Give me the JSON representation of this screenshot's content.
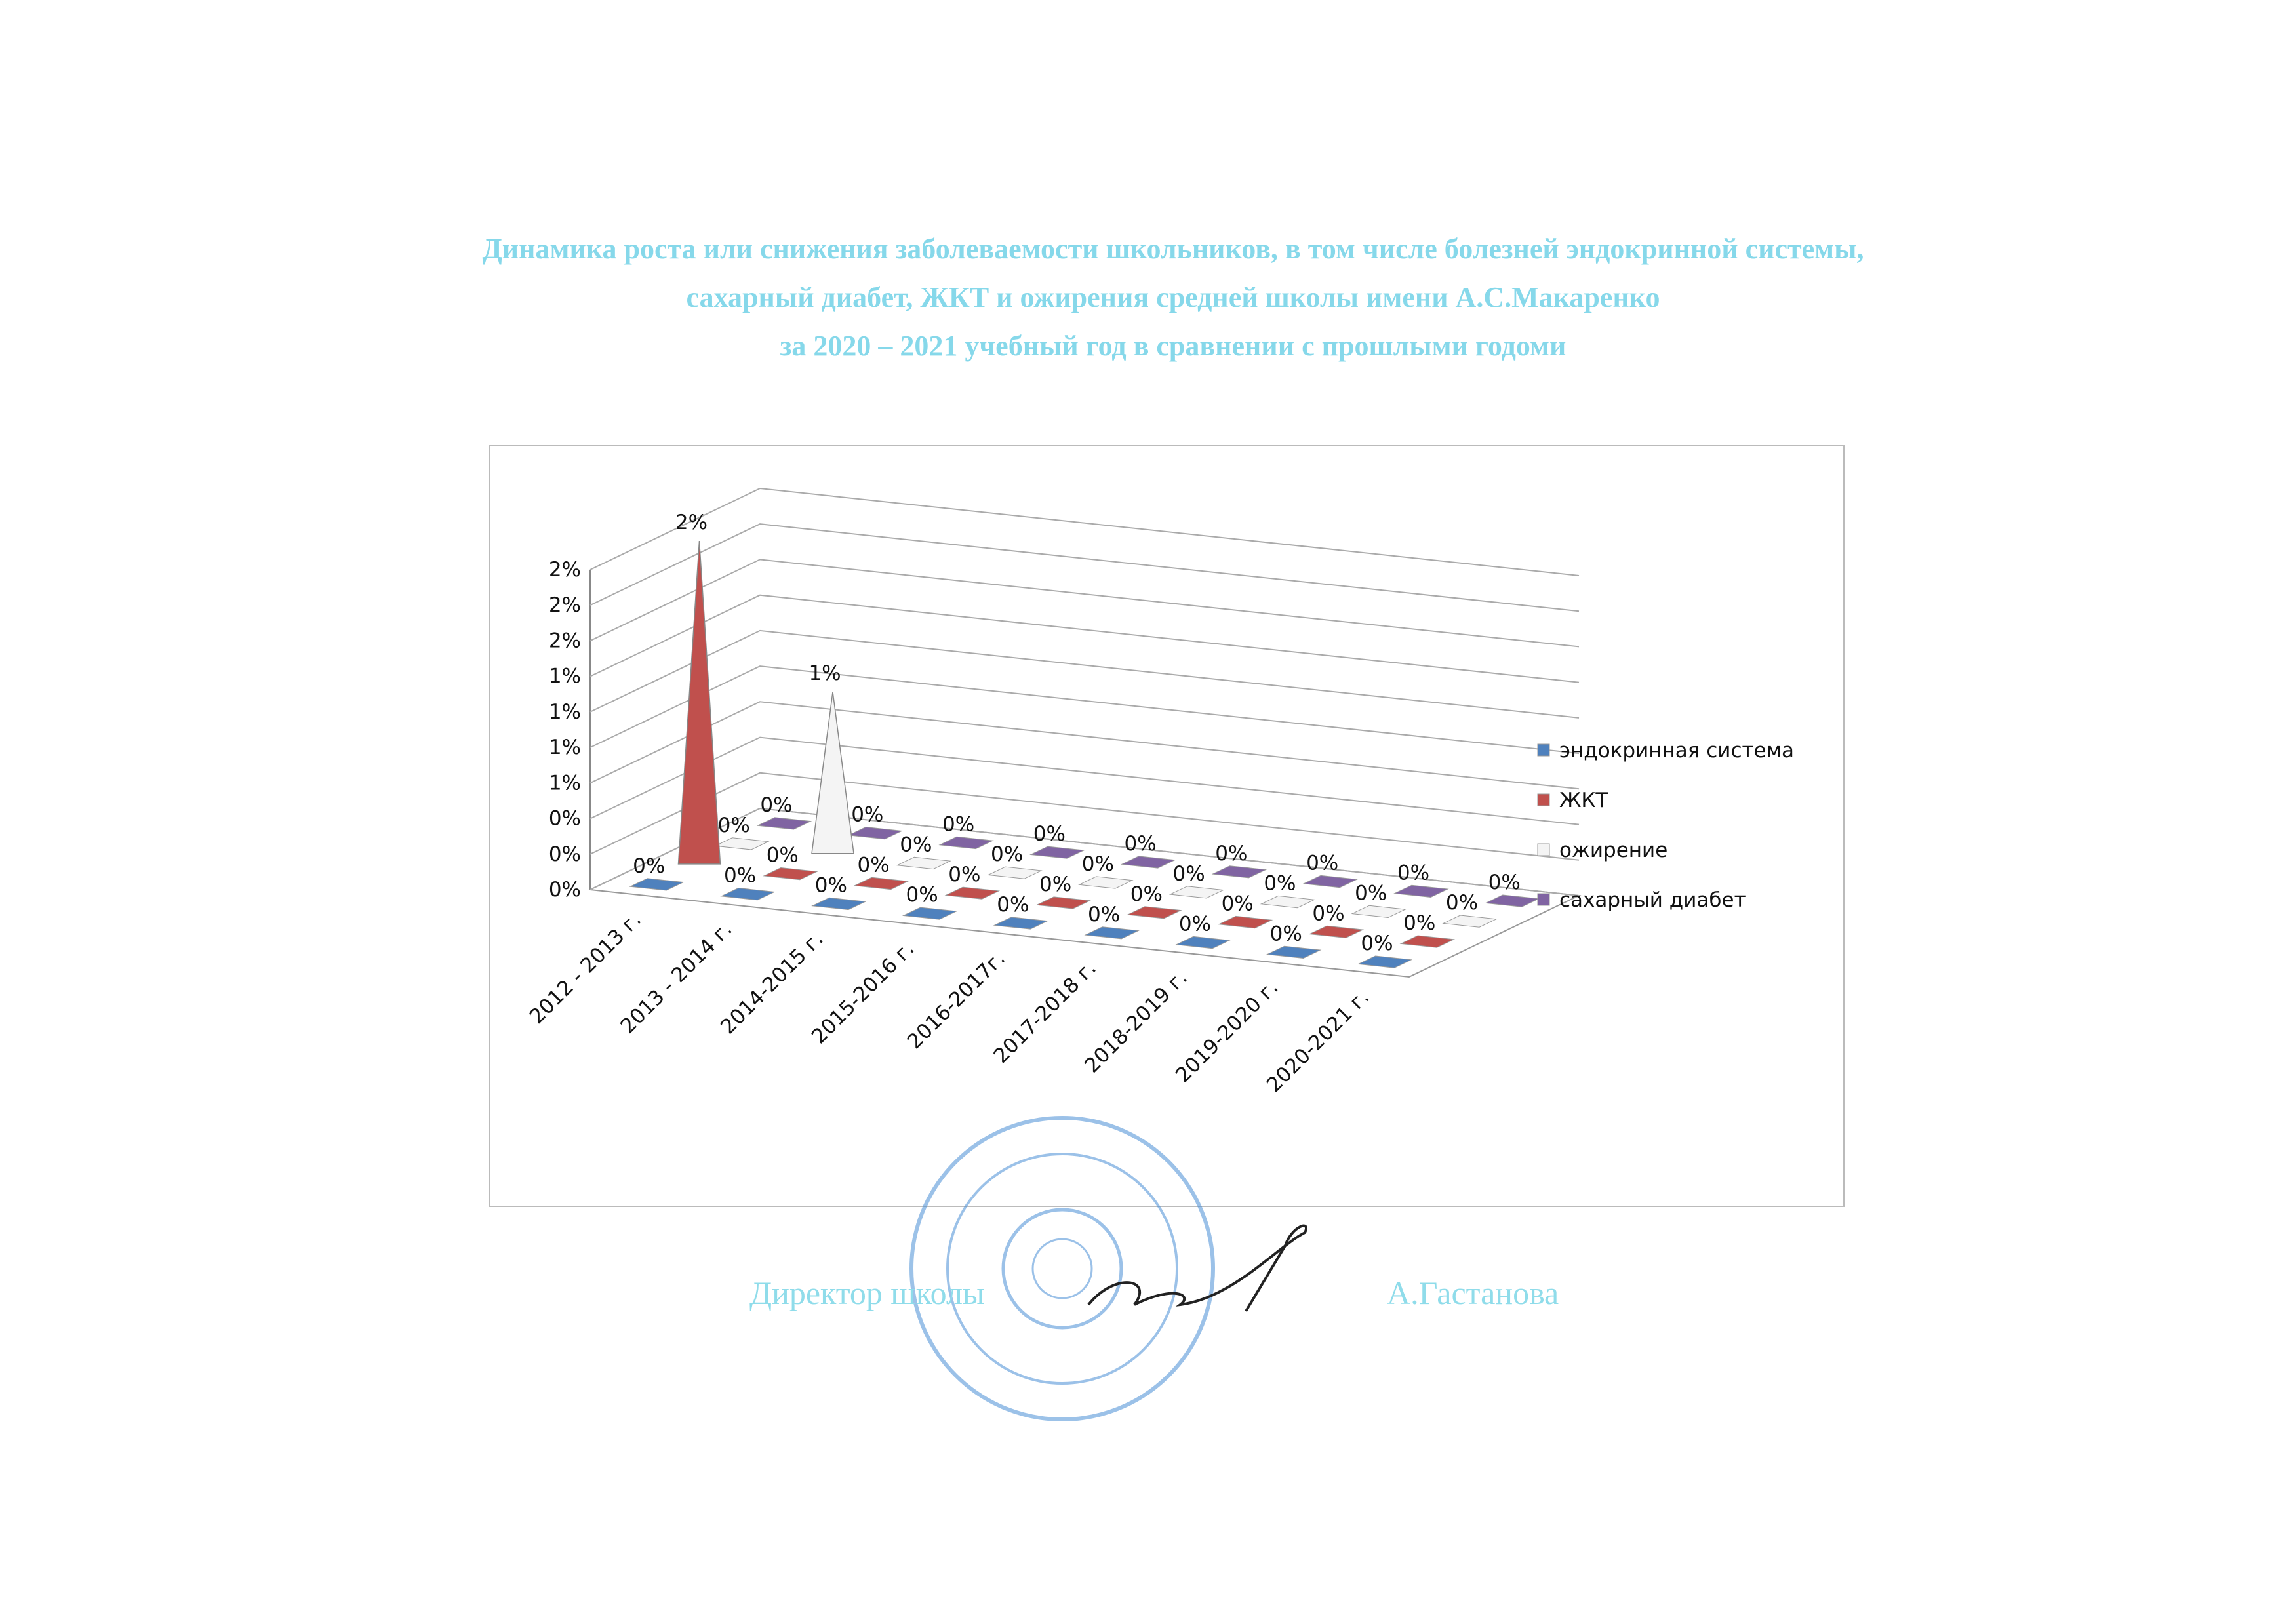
{
  "header": {
    "title_lines": [
      "Динамика роста или снижения заболеваемости школьников, в том числе болезней эндокринной системы,",
      "сахарный диабет, ЖКТ и ожирения  средней школы имени А.С.Макаренко",
      "за 2020 – 2021 учебный год  в сравнении с прошлыми годоми"
    ]
  },
  "chart_data": {
    "type": "cone3d",
    "categories": [
      "2012 - 2013 г.",
      "2013 - 2014 г.",
      "2014-2015 г.",
      "2015-2016 г.",
      "2016-2017г.",
      "2017-2018 г.",
      "2018-2019 г.",
      "2019-2020 г.",
      "2020-2021 г."
    ],
    "series": [
      {
        "name": "эндокринная система",
        "color": "#4f81bd",
        "values": [
          0,
          0,
          0,
          0,
          0,
          0,
          0,
          0,
          0
        ],
        "value_labels": [
          "0%",
          "0%",
          "0%",
          "0%",
          "0%",
          "0%",
          "0%",
          "0%",
          "0%"
        ]
      },
      {
        "name": "ЖКТ",
        "color": "#c0504d",
        "values": [
          2,
          0,
          0,
          0,
          0,
          0,
          0,
          0,
          0
        ],
        "value_labels": [
          "2%",
          "0%",
          "0%",
          "0%",
          "0%",
          "0%",
          "0%",
          "0%",
          "0%"
        ]
      },
      {
        "name": "ожирение",
        "color": "#f4f4f4",
        "values": [
          0,
          1,
          0,
          0,
          0,
          0,
          0,
          0,
          0
        ],
        "value_labels": [
          "0%",
          "1%",
          "0%",
          "0%",
          "0%",
          "0%",
          "0%",
          "0%",
          "0%"
        ]
      },
      {
        "name": "сахарный диабет",
        "color": "#8064a2",
        "values": [
          0,
          0,
          0,
          0,
          0,
          0,
          0,
          0,
          0
        ],
        "value_labels": [
          "0%",
          "0%",
          "0%",
          "0%",
          "0%",
          "0%",
          "0%",
          "0%",
          "0%"
        ]
      }
    ],
    "ylim": [
      0,
      1.98
    ],
    "yticks": [
      {
        "value": 0,
        "label": "0%"
      },
      {
        "value": 0.22,
        "label": "0%"
      },
      {
        "value": 0.44,
        "label": "0%"
      },
      {
        "value": 0.66,
        "label": "1%"
      },
      {
        "value": 0.88,
        "label": "1%"
      },
      {
        "value": 1.1,
        "label": "1%"
      },
      {
        "value": 1.32,
        "label": "1%"
      },
      {
        "value": 1.54,
        "label": "2%"
      },
      {
        "value": 1.76,
        "label": "2%"
      },
      {
        "value": 1.98,
        "label": "2%"
      }
    ],
    "grid": true,
    "legend": "right"
  },
  "footer": {
    "position": "Директор школы",
    "name": "А.Гастанова"
  }
}
